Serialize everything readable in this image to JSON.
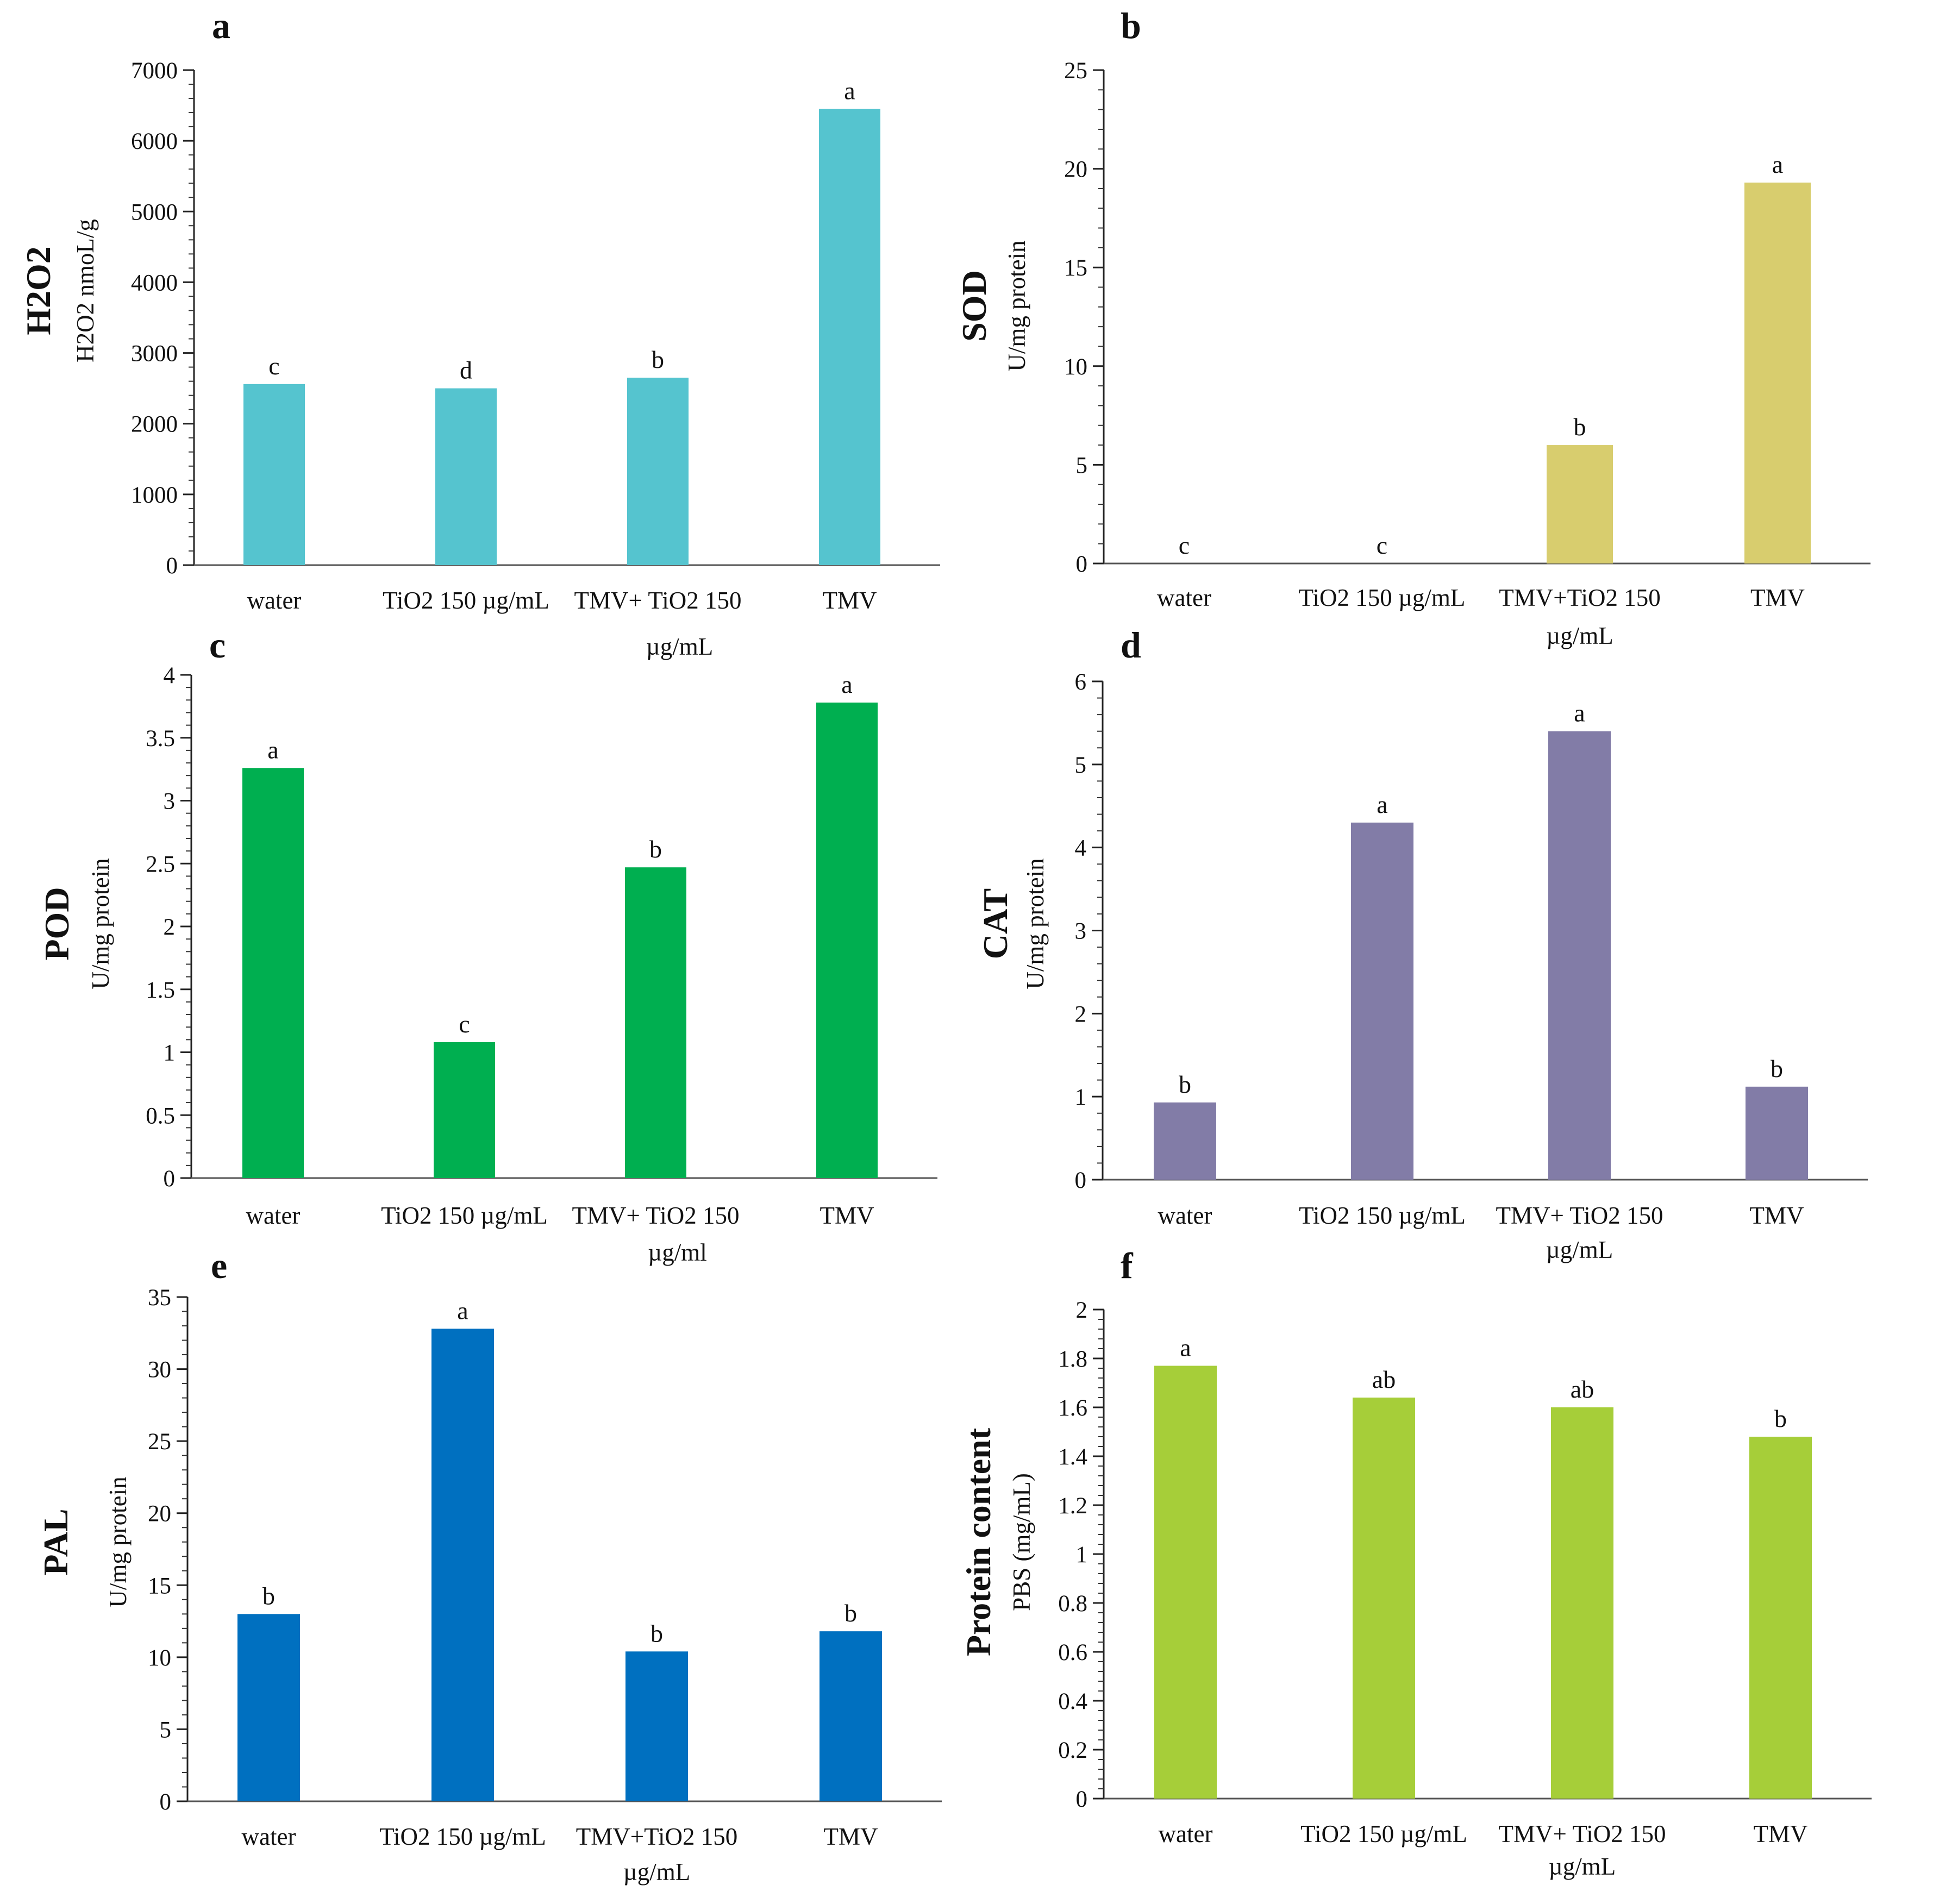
{
  "chart_data": [
    {
      "type": "bar",
      "panel": "a",
      "title": "H2O2",
      "ylabel": "H2O2 nmoL/g",
      "categories": [
        "water",
        "TiO2 150 µg/mL",
        "TMV+ TiO2 150 µg/mL",
        "TMV"
      ],
      "values": [
        2560,
        2500,
        2650,
        6450
      ],
      "significance": [
        "c",
        "d",
        "b",
        "a"
      ],
      "ylim": [
        0,
        7000
      ],
      "yticks": [
        "0",
        "1000",
        "2000",
        "3000",
        "4000",
        "5000",
        "6000",
        "7000"
      ],
      "color": "#55C4CF"
    },
    {
      "type": "bar",
      "panel": "b",
      "title": "SOD",
      "ylabel": "U/mg protein",
      "categories": [
        "water",
        "TiO2 150 µg/mL",
        "TMV+TiO2 150 µg/mL",
        "TMV"
      ],
      "values": [
        0,
        0,
        6,
        19.3
      ],
      "significance": [
        "c",
        "c",
        "b",
        "a"
      ],
      "ylim": [
        0,
        25
      ],
      "yticks": [
        "0",
        "5",
        "10",
        "15",
        "20",
        "25"
      ],
      "color": "#D8CD6E"
    },
    {
      "type": "bar",
      "panel": "c",
      "title": "POD",
      "ylabel": "U/mg protein",
      "categories": [
        "water",
        "TiO2 150 µg/mL",
        "TMV+ TiO2 150 µg/ml",
        "TMV"
      ],
      "values": [
        3.26,
        1.08,
        2.47,
        3.78
      ],
      "significance": [
        "a",
        "c",
        "b",
        "a"
      ],
      "ylim": [
        0,
        4
      ],
      "yticks": [
        "0",
        "0.5",
        "1",
        "1.5",
        "2",
        "2.5",
        "3",
        "3.5",
        "4"
      ],
      "color": "#00AF50"
    },
    {
      "type": "bar",
      "panel": "d",
      "title": "CAT",
      "ylabel": "U/mg protein",
      "categories": [
        "water",
        "TiO2 150 µg/mL",
        "TMV+ TiO2 150 µg/mL",
        "TMV"
      ],
      "values": [
        0.93,
        4.3,
        5.4,
        1.12
      ],
      "significance": [
        "b",
        "a",
        "a",
        "b"
      ],
      "ylim": [
        0,
        6
      ],
      "yticks": [
        "0",
        "1",
        "2",
        "3",
        "4",
        "5",
        "6"
      ],
      "color": "#827CA7"
    },
    {
      "type": "bar",
      "panel": "e",
      "title": "PAL",
      "ylabel": "U/mg protein",
      "categories": [
        "water",
        "TiO2 150 µg/mL",
        "TMV+TiO2 150 µg/mL",
        "TMV"
      ],
      "values": [
        13,
        32.8,
        10.4,
        11.8
      ],
      "significance": [
        "b",
        "a",
        "b",
        "b"
      ],
      "ylim": [
        0,
        35
      ],
      "yticks": [
        "0",
        "5",
        "10",
        "15",
        "20",
        "25",
        "30",
        "35"
      ],
      "color": "#0070C0"
    },
    {
      "type": "bar",
      "panel": "f",
      "title": "Protein content",
      "ylabel": "PBS (mg/mL)",
      "categories": [
        "water",
        "TiO2 150 µg/mL",
        "TMV+ TiO2 150 µg/mL",
        "TMV"
      ],
      "values": [
        1.77,
        1.64,
        1.6,
        1.48
      ],
      "significance": [
        "a",
        "ab",
        "ab",
        "b"
      ],
      "ylim": [
        0,
        2
      ],
      "yticks": [
        "0",
        "0.2",
        "0.4",
        "0.6",
        "0.8",
        "1",
        "1.2",
        "1.4",
        "1.6",
        "1.8",
        "2"
      ],
      "color": "#A6CE39"
    }
  ]
}
